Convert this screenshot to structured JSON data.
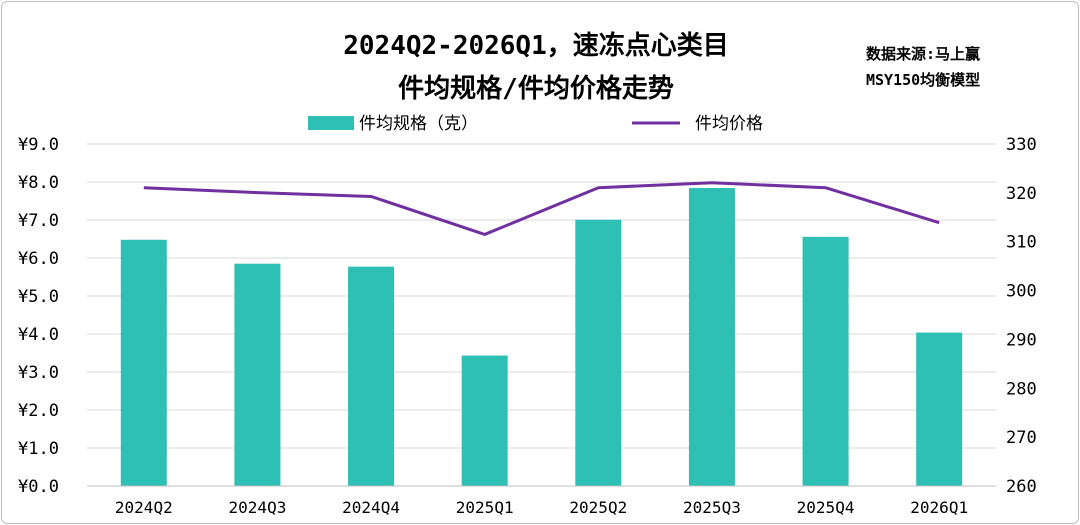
{
  "chart_data": {
    "type": "bar+line",
    "title_lines": [
      "2024Q2-2026Q1，速冻点心类目",
      "件均规格/件均价格走势"
    ],
    "source_lines": [
      "数据来源:马上赢",
      "MSY150均衡模型"
    ],
    "categories": [
      "2024Q2",
      "2024Q3",
      "2024Q4",
      "2025Q1",
      "2025Q2",
      "2025Q3",
      "2025Q4",
      "2026Q1"
    ],
    "series": [
      {
        "name": "件均规格（克）",
        "type": "bar",
        "axis": "right",
        "color": "#2ec0b4",
        "values": [
          310.4,
          305.5,
          304.9,
          286.7,
          314.5,
          321.0,
          311.0,
          291.4
        ]
      },
      {
        "name": "件均价格",
        "type": "line",
        "axis": "left",
        "color": "#7030a0",
        "values": [
          7.85,
          7.72,
          7.62,
          6.62,
          7.85,
          7.98,
          7.85,
          6.93
        ]
      }
    ],
    "y_left": {
      "min": 0,
      "max": 9,
      "step": 1,
      "ticks": [
        "¥0.0",
        "¥1.0",
        "¥2.0",
        "¥3.0",
        "¥4.0",
        "¥5.0",
        "¥6.0",
        "¥7.0",
        "¥8.0",
        "¥9.0"
      ]
    },
    "y_right": {
      "min": 260,
      "max": 330,
      "step": 10,
      "ticks": [
        "260",
        "270",
        "280",
        "290",
        "300",
        "310",
        "320",
        "330"
      ]
    },
    "grid": true,
    "legend_position": "top"
  }
}
